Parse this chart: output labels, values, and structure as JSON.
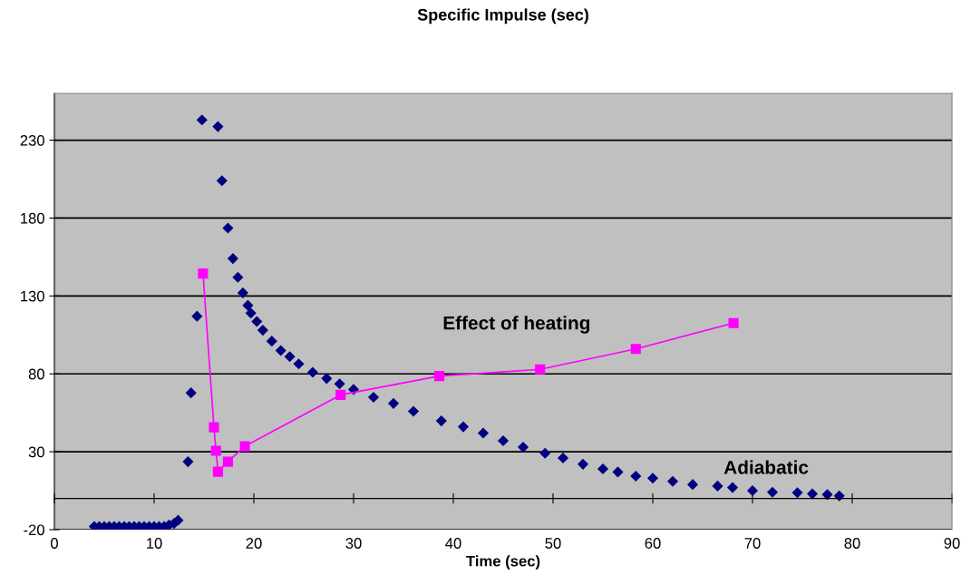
{
  "chart_data": {
    "type": "scatter",
    "title": "Specific Impulse (sec)",
    "xlabel": "Time (sec)",
    "xlim": [
      0,
      90
    ],
    "xticks": [
      0,
      10,
      20,
      30,
      40,
      50,
      60,
      70,
      80,
      90
    ],
    "ylim": [
      -20,
      260
    ],
    "yticks": [
      -20,
      30,
      80,
      130,
      180,
      230
    ],
    "grid": "y",
    "legend": false,
    "series": [
      {
        "marker": "diamond",
        "color": "#000080",
        "x": [
          4,
          4.5,
          5,
          5.5,
          6,
          6.5,
          7,
          7.5,
          8,
          8.5,
          9,
          9.5,
          10,
          10.5,
          11,
          11.5,
          12,
          12.4,
          13.4,
          13.7,
          14.3,
          14.8,
          16.4,
          16.8,
          17.4,
          17.9,
          18.4,
          18.9,
          19.4,
          19.7,
          20.3,
          20.9,
          21.8,
          22.7,
          23.6,
          24.5,
          25.9,
          27.3,
          28.6,
          30,
          32,
          34,
          36,
          38.8,
          41,
          43,
          45,
          47,
          49.2,
          51,
          53,
          55,
          56.5,
          58.3,
          60,
          62,
          64,
          66.5,
          68,
          70,
          72,
          74.5,
          76,
          77.5,
          78.7
        ],
        "values": [
          -18,
          -18,
          -18,
          -18,
          -18,
          -18,
          -18,
          -18,
          -18,
          -18,
          -18,
          -18,
          -18,
          -18,
          -18,
          -17,
          -16,
          -14,
          23.6,
          67.8,
          117,
          243,
          238.7,
          204,
          173.6,
          154,
          142,
          132,
          124,
          119,
          113.6,
          108,
          101,
          95,
          91,
          86.4,
          81,
          77,
          73.6,
          70,
          65,
          61,
          56,
          49.8,
          46,
          42,
          37,
          33,
          29,
          26,
          22,
          19,
          17,
          14.3,
          13,
          11,
          9,
          8,
          7,
          5,
          4,
          3.7,
          3,
          2.5,
          1.7
        ]
      },
      {
        "type": "line",
        "marker": "square",
        "line_style": "solid",
        "color": "#ff00ff",
        "x": [
          14.9,
          16.0,
          16.2,
          16.4,
          17.4,
          19.1,
          28.7,
          38.6,
          48.7,
          58.3,
          68.1
        ],
        "values": [
          144.4,
          45.7,
          30.6,
          17.2,
          23.6,
          33.5,
          66.5,
          78.6,
          82.9,
          96,
          112.6
        ]
      }
    ],
    "annotations": [
      "Effect of heating",
      "Adiabatic"
    ]
  }
}
